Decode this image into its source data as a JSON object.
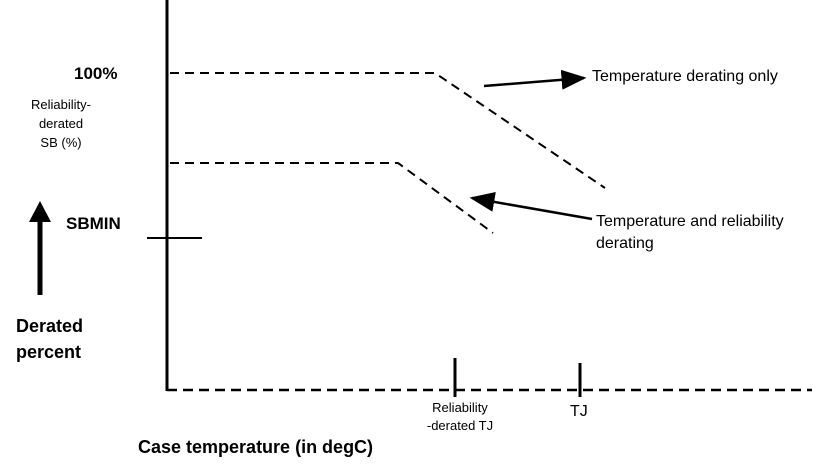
{
  "y_axis": {
    "top_label": "100%",
    "side_label_lines": [
      "Reliability-",
      "derated",
      "SB (%)"
    ],
    "sbmin_label": "SBMIN",
    "direction_label_lines": [
      "Derated",
      "percent"
    ]
  },
  "x_axis": {
    "label": "Case temperature (in degC)",
    "tick_labels": {
      "reliability_tj_lines": [
        "Reliability",
        "-derated TJ"
      ],
      "tj": "TJ"
    }
  },
  "callouts": {
    "temperature_only": "Temperature derating only",
    "temperature_and_reliability_lines": [
      "Temperature and reliability",
      "derating"
    ]
  },
  "colors": {
    "line": "#000000",
    "background": "#ffffff"
  }
}
